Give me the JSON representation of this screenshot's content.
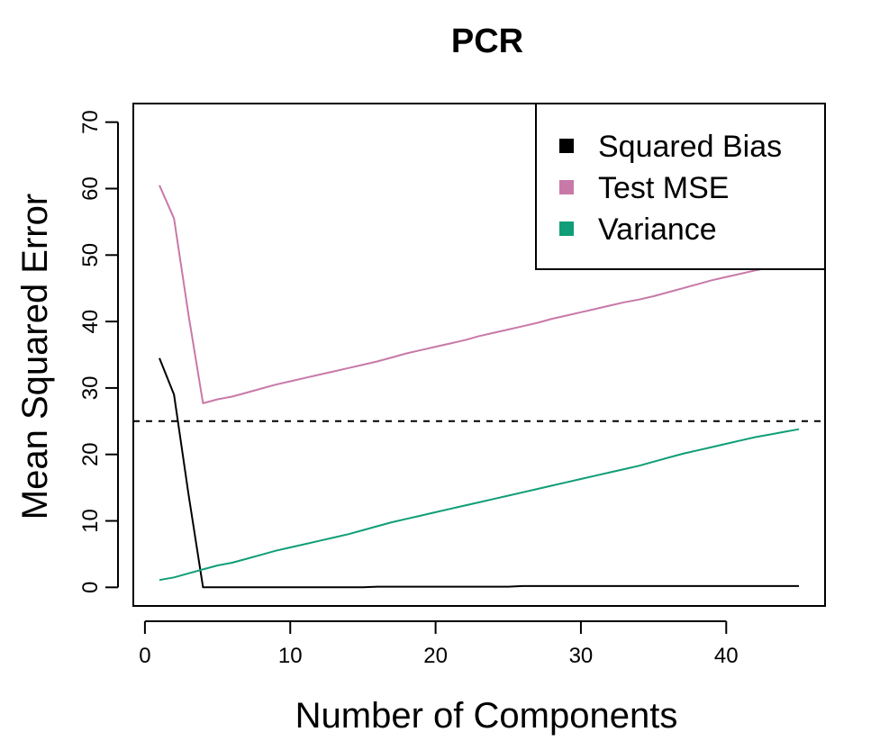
{
  "chart_data": {
    "type": "line",
    "title": "PCR",
    "xlabel": "Number of Components",
    "ylabel": "Mean Squared Error",
    "xlim": [
      -0.8,
      46.8
    ],
    "ylim": [
      -2.8,
      72.8
    ],
    "xticks": [
      0,
      10,
      20,
      30,
      40
    ],
    "yticks": [
      0,
      10,
      20,
      30,
      40,
      50,
      60,
      70
    ],
    "grid": false,
    "legend_position": "top-right",
    "reference_line": {
      "y": 25,
      "style": "dashed",
      "color": "#000000"
    },
    "series": [
      {
        "name": "Squared Bias",
        "color": "#000000",
        "x": [
          1,
          2,
          3,
          4,
          5,
          6,
          7,
          8,
          9,
          10,
          11,
          12,
          13,
          14,
          15,
          16,
          17,
          18,
          19,
          20,
          21,
          22,
          23,
          24,
          25,
          26,
          27,
          28,
          29,
          30,
          31,
          32,
          33,
          34,
          35,
          36,
          37,
          38,
          39,
          40,
          41,
          42,
          43,
          44,
          45
        ],
        "values": [
          34.5,
          29,
          14,
          0,
          0,
          0,
          0,
          0,
          0,
          0,
          0,
          0,
          0,
          0,
          0,
          0.1,
          0.1,
          0.1,
          0.1,
          0.1,
          0.1,
          0.1,
          0.1,
          0.1,
          0.1,
          0.2,
          0.2,
          0.2,
          0.2,
          0.2,
          0.2,
          0.2,
          0.2,
          0.2,
          0.2,
          0.2,
          0.2,
          0.2,
          0.2,
          0.2,
          0.2,
          0.2,
          0.2,
          0.2,
          0.2
        ]
      },
      {
        "name": "Test MSE",
        "color": "#c879a8",
        "x": [
          1,
          2,
          3,
          4,
          5,
          6,
          7,
          8,
          9,
          10,
          11,
          12,
          13,
          14,
          15,
          16,
          17,
          18,
          19,
          20,
          21,
          22,
          23,
          24,
          25,
          26,
          27,
          28,
          29,
          30,
          31,
          32,
          33,
          34,
          35,
          36,
          37,
          38,
          39,
          40,
          41,
          42,
          43,
          44,
          45
        ],
        "values": [
          60.5,
          55.5,
          41,
          27.7,
          28.3,
          28.7,
          29.3,
          29.9,
          30.5,
          31,
          31.5,
          32,
          32.5,
          33,
          33.5,
          34,
          34.6,
          35.2,
          35.7,
          36.2,
          36.7,
          37.2,
          37.8,
          38.3,
          38.8,
          39.3,
          39.8,
          40.4,
          40.9,
          41.4,
          41.9,
          42.4,
          42.9,
          43.3,
          43.8,
          44.4,
          45,
          45.6,
          46.2,
          46.7,
          47.2,
          47.7,
          48.1,
          48.5,
          48.9
        ]
      },
      {
        "name": "Variance",
        "color": "#0f9e77",
        "x": [
          1,
          2,
          3,
          4,
          5,
          6,
          7,
          8,
          9,
          10,
          11,
          12,
          13,
          14,
          15,
          16,
          17,
          18,
          19,
          20,
          21,
          22,
          23,
          24,
          25,
          26,
          27,
          28,
          29,
          30,
          31,
          32,
          33,
          34,
          35,
          36,
          37,
          38,
          39,
          40,
          41,
          42,
          43,
          44,
          45
        ],
        "values": [
          1.1,
          1.5,
          2.1,
          2.7,
          3.3,
          3.7,
          4.3,
          4.9,
          5.5,
          6,
          6.5,
          7,
          7.5,
          8,
          8.6,
          9.2,
          9.8,
          10.3,
          10.8,
          11.3,
          11.8,
          12.3,
          12.8,
          13.3,
          13.8,
          14.3,
          14.8,
          15.3,
          15.8,
          16.3,
          16.8,
          17.3,
          17.8,
          18.3,
          18.9,
          19.5,
          20.1,
          20.6,
          21.1,
          21.6,
          22.1,
          22.6,
          23,
          23.4,
          23.8
        ]
      }
    ]
  }
}
